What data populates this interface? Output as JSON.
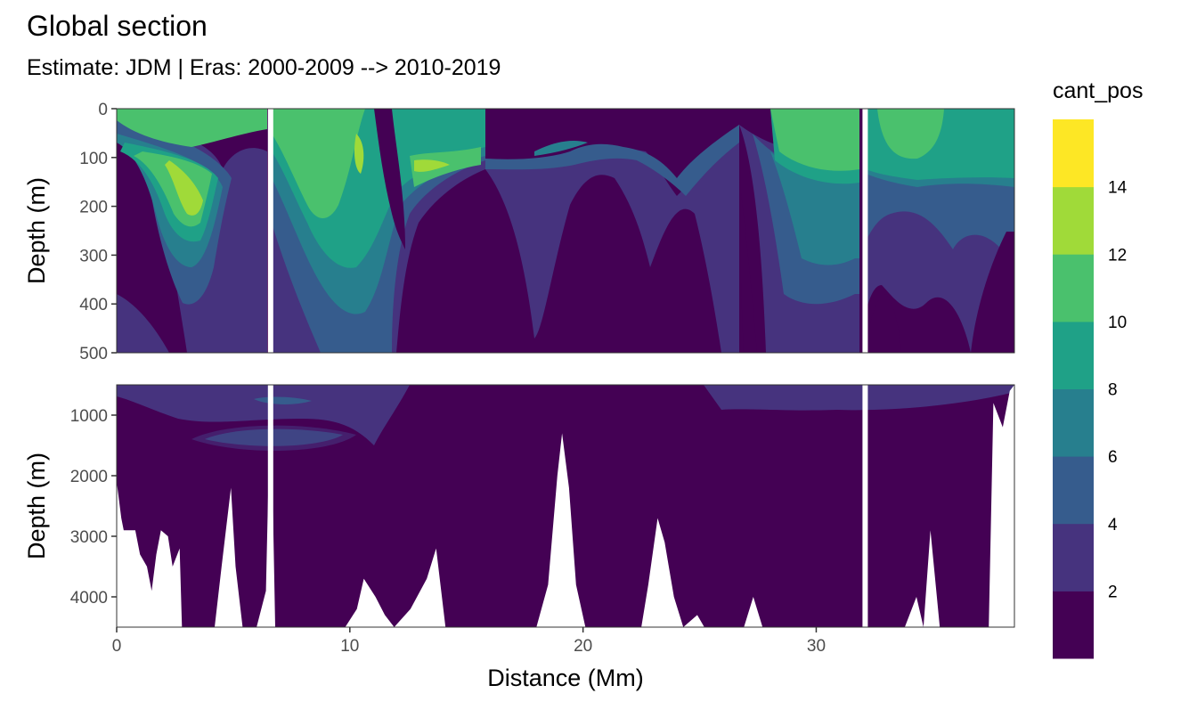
{
  "chart_data": {
    "type": "heatmap",
    "title": "Global section",
    "subtitle": "Estimate: JDM  | Eras: 2000-2009 --> 2010-2019",
    "xlabel": "Distance (Mm)",
    "ylabel": "Depth (m)",
    "xlim": [
      0,
      38.5
    ],
    "x_ticks": [
      0,
      10,
      20,
      30
    ],
    "x_tick_labels": [
      "0",
      "10",
      "20",
      "30"
    ],
    "panels": [
      {
        "name": "upper",
        "ylim": [
          0,
          500
        ],
        "y_ticks": [
          0,
          100,
          200,
          300,
          400,
          500
        ],
        "y_tick_labels": [
          "0",
          "100",
          "200",
          "300",
          "400",
          "500"
        ]
      },
      {
        "name": "lower",
        "ylim": [
          500,
          4500
        ],
        "y_ticks": [
          1000,
          2000,
          3000,
          4000
        ],
        "y_tick_labels": [
          "1000",
          "2000",
          "3000",
          "4000"
        ]
      }
    ],
    "section_gaps_x": [
      6.6,
      32.1
    ],
    "legend": {
      "title": "cant_pos",
      "position": "right",
      "breaks": [
        2,
        4,
        6,
        8,
        10,
        12,
        14
      ],
      "break_labels": [
        "2",
        "4",
        "6",
        "8",
        "10",
        "12",
        "14"
      ],
      "colors": [
        "#440154",
        "#46337e",
        "#365c8d",
        "#277f8e",
        "#1fa187",
        "#4ac16d",
        "#a0da39",
        "#fde725"
      ]
    },
    "bottom_topography": [
      [
        0,
        2100
      ],
      [
        0.2,
        2700
      ],
      [
        0.3,
        2900
      ],
      [
        0.8,
        2900
      ],
      [
        1,
        3300
      ],
      [
        1.3,
        3500
      ],
      [
        1.5,
        3900
      ],
      [
        1.7,
        3300
      ],
      [
        1.9,
        2900
      ],
      [
        2.2,
        3000
      ],
      [
        2.4,
        3500
      ],
      [
        2.7,
        3200
      ],
      [
        2.8,
        4500
      ],
      [
        4.2,
        4500
      ],
      [
        4.5,
        3500
      ],
      [
        4.9,
        2200
      ],
      [
        5.1,
        3500
      ],
      [
        5.4,
        4500
      ],
      [
        6.0,
        4500
      ],
      [
        6.4,
        3900
      ],
      [
        6.6,
        500
      ],
      [
        6.8,
        4500
      ],
      [
        9.8,
        4500
      ],
      [
        10.3,
        4200
      ],
      [
        10.6,
        3700
      ],
      [
        11.1,
        4000
      ],
      [
        11.5,
        4300
      ],
      [
        11.9,
        4500
      ],
      [
        12.6,
        4200
      ],
      [
        13.3,
        3700
      ],
      [
        13.7,
        3200
      ],
      [
        14.1,
        4500
      ],
      [
        18.0,
        4500
      ],
      [
        18.5,
        3800
      ],
      [
        18.9,
        2000
      ],
      [
        19.1,
        1300
      ],
      [
        19.4,
        2200
      ],
      [
        19.7,
        3800
      ],
      [
        20.1,
        4500
      ],
      [
        22.5,
        4500
      ],
      [
        22.8,
        3800
      ],
      [
        23.2,
        2700
      ],
      [
        23.5,
        3100
      ],
      [
        23.9,
        4000
      ],
      [
        24.3,
        4500
      ],
      [
        24.9,
        4300
      ],
      [
        25.2,
        4500
      ],
      [
        26.9,
        4500
      ],
      [
        27.3,
        4000
      ],
      [
        27.7,
        4500
      ],
      [
        29.5,
        4500
      ],
      [
        31.8,
        4500
      ],
      [
        32.3,
        4500
      ],
      [
        33.8,
        4500
      ],
      [
        34.3,
        4000
      ],
      [
        34.6,
        4500
      ],
      [
        34.9,
        2900
      ],
      [
        35.3,
        4500
      ],
      [
        37.4,
        4500
      ],
      [
        37.6,
        800
      ],
      [
        38.0,
        1200
      ],
      [
        38.3,
        600
      ],
      [
        38.5,
        500
      ]
    ]
  }
}
